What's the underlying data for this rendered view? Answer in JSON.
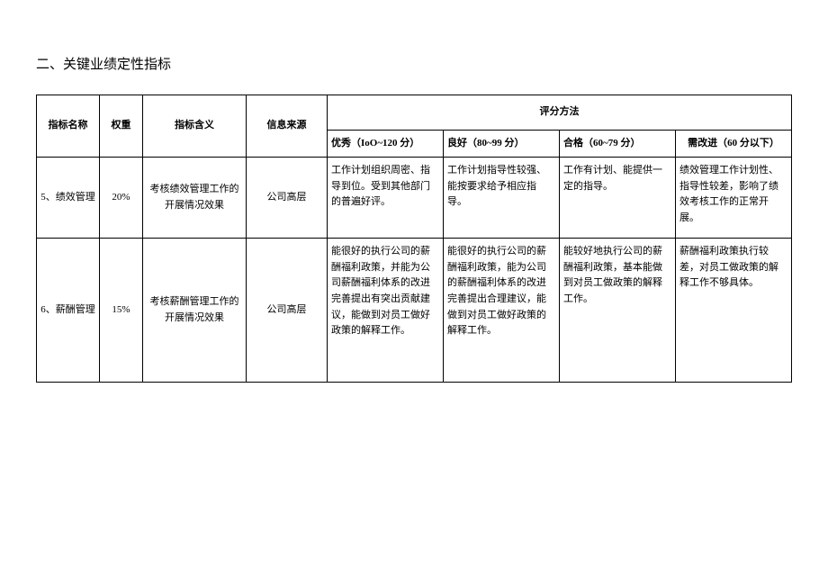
{
  "section_title": "二、关键业绩定性指标",
  "table": {
    "headers": {
      "indicator_name": "指标名称",
      "weight": "权重",
      "indicator_meaning": "指标含义",
      "info_source": "信息来源",
      "scoring_method": "评分方法",
      "excellent": "优秀（IoO~120 分）",
      "good": "良好（80~99 分）",
      "qualified": "合格（60~79 分）",
      "need_improve": "需改进（60 分以下）"
    },
    "rows": [
      {
        "name": "5、绩效管理",
        "weight": "20%",
        "meaning": "考核绩效管理工作的开展情况效果",
        "source": "公司高层",
        "excellent": "工作计划组织周密、指导到位。受到其他部门的普遍好评。",
        "good": "工作计划指导性较强、能按要求给予相应指导。",
        "qualified": "工作有计划、能提供一定的指导。",
        "need_improve": "绩效管理工作计划性、指导性较差，影响了绩效考核工作的正常开展。"
      },
      {
        "name": "6、薪酬管理",
        "weight": "15%",
        "meaning": "考核薪酬管理工作的开展情况效果",
        "source": "公司高层",
        "excellent": "能很好的执行公司的薪酬福利政策，并能为公司薪酬福利体系的改进完善提出有突出贡献建议，能做到对员工做好政策的解释工作。",
        "good": "能很好的执行公司的薪酬福利政策，能为公司的薪酬福利体系的改进完善提出合理建议，能做到对员工做好政策的解释工作。",
        "qualified": "能较好地执行公司的薪酬福利政策，基本能做到对员工做政策的解释工作。",
        "need_improve": "薪酬福利政策执行较差，对员工做政策的解释工作不够具体。"
      }
    ]
  },
  "styling": {
    "font_family": "SimSun",
    "background_color": "#ffffff",
    "text_color": "#000000",
    "border_color": "#000000",
    "title_fontsize": 15,
    "cell_fontsize": 11,
    "line_height": 1.6,
    "column_widths": {
      "name": 70,
      "weight": 48,
      "meaning": 115,
      "source": 90,
      "score_col": 103
    }
  }
}
